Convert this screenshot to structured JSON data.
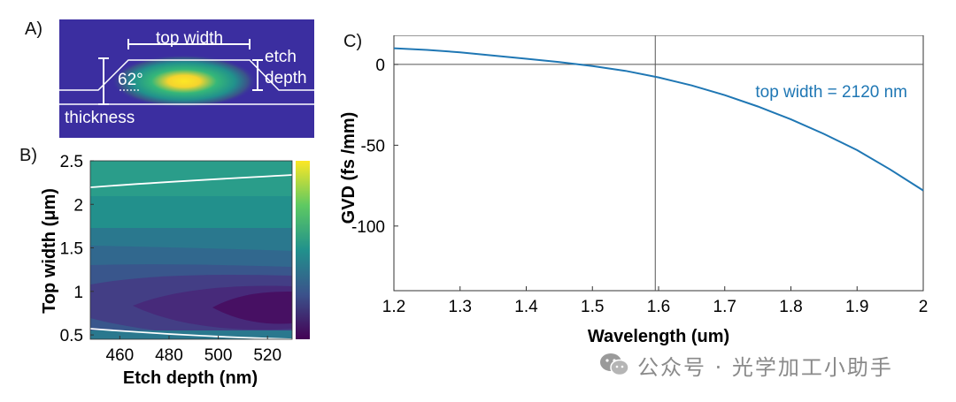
{
  "panel_labels": {
    "a": "A)",
    "b": "B)",
    "c": "C)"
  },
  "watermark": "公众号 · 光学加工小助手",
  "colors": {
    "panelA_bg": "#3b2ea0",
    "curve": "#1f77b4",
    "top_width_label": "#1f77b4"
  },
  "chart_data": [
    {
      "type": "diagram",
      "panel": "A",
      "annotations": {
        "top_width": "top width",
        "etch_depth_line1": "etch",
        "etch_depth_line2": "depth",
        "angle": "62°",
        "thickness": "thickness"
      }
    },
    {
      "type": "heatmap",
      "panel": "B",
      "xlabel": "Etch depth (nm)",
      "ylabel": "Top width (μm)",
      "xlim": [
        448,
        530
      ],
      "ylim": [
        0.45,
        2.5
      ],
      "x_ticks": [
        460,
        480,
        500,
        520
      ],
      "y_ticks": [
        0.5,
        1,
        1.5,
        2,
        2.5
      ],
      "y_tick_labels": [
        "0.5",
        "1",
        "1.5",
        "2",
        "2.5"
      ],
      "colormap": "viridis",
      "contour_values": [
        0.55,
        2.2
      ]
    },
    {
      "type": "line",
      "panel": "C",
      "xlabel": "Wavelength (um)",
      "ylabel": "GVD (fs /mm)",
      "xlim": [
        1.2,
        2.0
      ],
      "ylim": [
        -140,
        18
      ],
      "x_ticks": [
        1.2,
        1.3,
        1.4,
        1.5,
        1.6,
        1.7,
        1.8,
        1.9,
        2.0
      ],
      "x_tick_labels": [
        "1.2",
        "1.3",
        "1.4",
        "1.5",
        "1.6",
        "1.7",
        "1.8",
        "1.9",
        "2"
      ],
      "y_ticks": [
        0,
        -50,
        -100
      ],
      "y_tick_labels": [
        "0",
        "-50",
        "-100"
      ],
      "hline_y": 0,
      "vline_x": 1.595,
      "annotation": "top width = 2120 nm",
      "series": [
        {
          "name": "top width = 2120 nm",
          "x": [
            1.2,
            1.25,
            1.3,
            1.35,
            1.4,
            1.45,
            1.5,
            1.55,
            1.6,
            1.65,
            1.7,
            1.75,
            1.8,
            1.85,
            1.9,
            1.95,
            2.0
          ],
          "y": [
            10,
            9,
            7.5,
            5.5,
            3.5,
            1.5,
            -1,
            -4,
            -8,
            -13,
            -19,
            -26,
            -34,
            -43,
            -53,
            -65,
            -78
          ]
        }
      ]
    }
  ]
}
